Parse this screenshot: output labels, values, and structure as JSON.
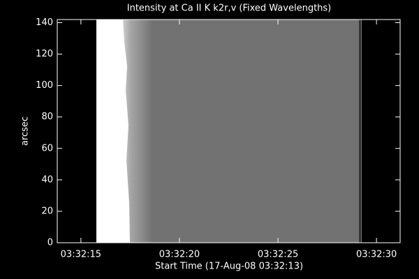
{
  "chart_data": {
    "type": "image",
    "title": "Intensity at Ca II K k2r,v (Fixed Wavelengths)",
    "xlabel": "Start Time (17-Aug-08 03:32:13)",
    "ylabel": "arcsec",
    "xlim": [
      0.8,
      18.2
    ],
    "xticks": [
      {
        "value": 2,
        "label": "03:32:15"
      },
      {
        "value": 7,
        "label": "03:32:20"
      },
      {
        "value": 12,
        "label": "03:32:25"
      },
      {
        "value": 17,
        "label": "03:32:30"
      }
    ],
    "ylim": [
      0,
      142
    ],
    "yticks": [
      0,
      20,
      40,
      60,
      80,
      100,
      120,
      140
    ]
  }
}
